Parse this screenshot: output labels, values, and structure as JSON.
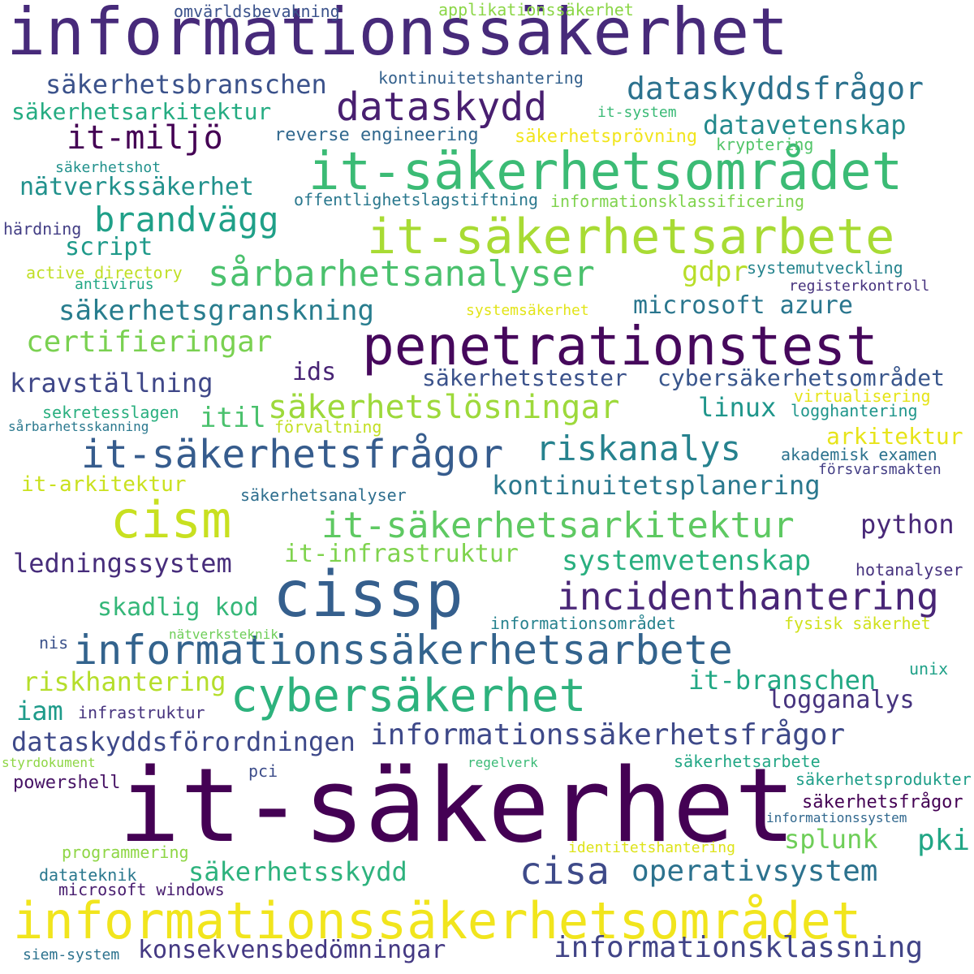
{
  "words": [
    {
      "text": "informationssäkerhet",
      "color": "#472a7a"
    },
    {
      "text": "it-säkerhet",
      "color": "#440154"
    },
    {
      "text": "informationssäkerhetsområdet",
      "color": "#f1e51d"
    },
    {
      "text": "it-säkerhetsområdet",
      "color": "#3bbb75"
    },
    {
      "text": "it-säkerhetsarbete",
      "color": "#a8db34"
    },
    {
      "text": "penetrationstest",
      "color": "#46085c"
    },
    {
      "text": "cissp",
      "color": "#355f8d"
    },
    {
      "text": "cism",
      "color": "#c8e020"
    },
    {
      "text": "informationssäkerhetsarbete",
      "color": "#33638d"
    },
    {
      "text": "cybersäkerhet",
      "color": "#2db27d"
    },
    {
      "text": "it-säkerhetsfrågor",
      "color": "#365c8d"
    },
    {
      "text": "it-säkerhetsarkitektur",
      "color": "#5ec962"
    },
    {
      "text": "dataskydd",
      "color": "#481f70"
    },
    {
      "text": "incidenthantering",
      "color": "#482576"
    },
    {
      "text": "informationssäkerhetsfrågor",
      "color": "#3e4989"
    },
    {
      "text": "sårbarhetsanalyser",
      "color": "#4ac16d"
    },
    {
      "text": "brandvägg",
      "color": "#1fa088"
    },
    {
      "text": "it-miljö",
      "color": "#440154"
    },
    {
      "text": "dataskyddsfrågor",
      "color": "#2c728e"
    },
    {
      "text": "säkerhetslösningar",
      "color": "#9dd93b"
    },
    {
      "text": "riskanalys",
      "color": "#26828e"
    },
    {
      "text": "informationsklassning",
      "color": "#414487"
    },
    {
      "text": "cisa",
      "color": "#3e4a89"
    },
    {
      "text": "operativsystem",
      "color": "#2c728e"
    },
    {
      "text": "säkerhetsbranschen",
      "color": "#3b528b"
    },
    {
      "text": "säkerhetsgranskning",
      "color": "#287d8e"
    },
    {
      "text": "certifieringar",
      "color": "#7ad151"
    },
    {
      "text": "systemvetenskap",
      "color": "#29af7f"
    },
    {
      "text": "dataskyddsförordningen",
      "color": "#3e4989"
    },
    {
      "text": "konsekvensbedömningar",
      "color": "#443983"
    },
    {
      "text": "it-infrastruktur",
      "color": "#7fd34e"
    },
    {
      "text": "kontinuitetsplanering",
      "color": "#2a788e"
    },
    {
      "text": "nätverkssäkerhet",
      "color": "#21918c"
    },
    {
      "text": "säkerhetsarkitektur",
      "color": "#25ac82"
    },
    {
      "text": "datavetenskap",
      "color": "#238a8d"
    },
    {
      "text": "microsoft azure",
      "color": "#2a768e"
    },
    {
      "text": "säkerhetsskydd",
      "color": "#2db27d"
    },
    {
      "text": "kravställning",
      "color": "#3f4788"
    },
    {
      "text": "ledningssystem",
      "color": "#472d7b"
    },
    {
      "text": "säkerhetstester",
      "color": "#3b528b"
    },
    {
      "text": "cybersäkerhetsområdet",
      "color": "#39568c"
    },
    {
      "text": "skadlig kod",
      "color": "#35b779"
    },
    {
      "text": "riskhantering",
      "color": "#b5de2b"
    },
    {
      "text": "it-branschen",
      "color": "#22a884"
    },
    {
      "text": "logganalys",
      "color": "#46337e"
    },
    {
      "text": "python",
      "color": "#482878"
    },
    {
      "text": "script",
      "color": "#1f9a8a"
    },
    {
      "text": "gdpr",
      "color": "#b8de29"
    },
    {
      "text": "linux",
      "color": "#1f968b"
    },
    {
      "text": "itil",
      "color": "#4ac16d"
    },
    {
      "text": "ids",
      "color": "#482475"
    },
    {
      "text": "iam",
      "color": "#1e9b8a"
    },
    {
      "text": "pki",
      "color": "#21a685"
    },
    {
      "text": "splunk",
      "color": "#6ece58"
    },
    {
      "text": "arkitektur",
      "color": "#e7e419"
    },
    {
      "text": "it-arkitektur",
      "color": "#cae11f"
    },
    {
      "text": "säkerhetsanalyser",
      "color": "#2e6e8e"
    },
    {
      "text": "kontinuitetshantering",
      "color": "#34618d"
    },
    {
      "text": "reverse engineering",
      "color": "#31688e"
    },
    {
      "text": "säkerhetsprövning",
      "color": "#f1e51d"
    },
    {
      "text": "it-system",
      "color": "#3aba76"
    },
    {
      "text": "kryptering",
      "color": "#52c569"
    },
    {
      "text": "offentlighetslagstiftning",
      "color": "#2a788e"
    },
    {
      "text": "informationsklassificering",
      "color": "#7fd34e"
    },
    {
      "text": "omvärldsbevakning",
      "color": "#3b528b"
    },
    {
      "text": "applikationssäkerhet",
      "color": "#8bd646"
    },
    {
      "text": "säkerhetshot",
      "color": "#21918c"
    },
    {
      "text": "härdning",
      "color": "#433e85"
    },
    {
      "text": "active directory",
      "color": "#c0df25"
    },
    {
      "text": "antivirus",
      "color": "#22a785"
    },
    {
      "text": "systemutveckling",
      "color": "#25848e"
    },
    {
      "text": "registerkontroll",
      "color": "#46327e"
    },
    {
      "text": "systemsäkerhet",
      "color": "#e2e418"
    },
    {
      "text": "sekretesslagen",
      "color": "#29af7f"
    },
    {
      "text": "sårbarhetsskanning",
      "color": "#2a788e"
    },
    {
      "text": "förvaltning",
      "color": "#c2df23"
    },
    {
      "text": "virtualisering",
      "color": "#e5e419"
    },
    {
      "text": "logghantering",
      "color": "#1f968b"
    },
    {
      "text": "akademisk examen",
      "color": "#2c728e"
    },
    {
      "text": "försvarsmakten",
      "color": "#433e85"
    },
    {
      "text": "hotanalyser",
      "color": "#46327e"
    },
    {
      "text": "nätverksteknik",
      "color": "#6ece58"
    },
    {
      "text": "informationsområdet",
      "color": "#26828e"
    },
    {
      "text": "fysisk säkerhet",
      "color": "#d0e11c"
    },
    {
      "text": "nis",
      "color": "#3b528b"
    },
    {
      "text": "unix",
      "color": "#1fa188"
    },
    {
      "text": "infrastruktur",
      "color": "#46337e"
    },
    {
      "text": "styrdokument",
      "color": "#8ed645"
    },
    {
      "text": "regelverk",
      "color": "#3aba76"
    },
    {
      "text": "säkerhetsarbete",
      "color": "#22a785"
    },
    {
      "text": "pci",
      "color": "#3d4d8a"
    },
    {
      "text": "powershell",
      "color": "#471365"
    },
    {
      "text": "säkerhetsprodukter",
      "color": "#1f9e89"
    },
    {
      "text": "säkerhetsfrågor",
      "color": "#440154"
    },
    {
      "text": "informationssystem",
      "color": "#31688e"
    },
    {
      "text": "programmering",
      "color": "#8ed645"
    },
    {
      "text": "identitetshantering",
      "color": "#dde318"
    },
    {
      "text": "datateknik",
      "color": "#2a788e"
    },
    {
      "text": "microsoft windows",
      "color": "#481d6f"
    },
    {
      "text": "siem-system",
      "color": "#2c728e"
    }
  ]
}
